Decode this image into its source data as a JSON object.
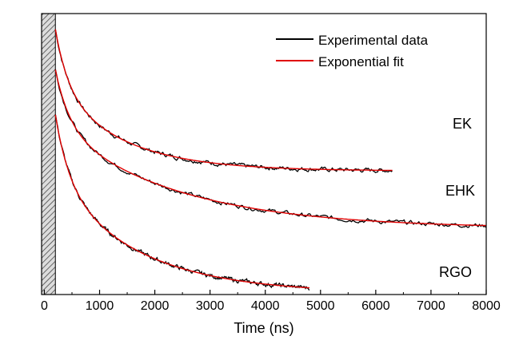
{
  "chart_data": {
    "type": "line",
    "title": "",
    "xlabel": "Time (ns)",
    "ylabel": "",
    "xlim": [
      -50,
      8000
    ],
    "ylim": [
      0,
      1
    ],
    "x_ticks": [
      0,
      1000,
      2000,
      3000,
      4000,
      5000,
      6000,
      7000,
      8000
    ],
    "x_tick_labels": [
      "0",
      "1000",
      "2000",
      "3000",
      "4000",
      "5000",
      "6000",
      "7000",
      "8000"
    ],
    "y_ticks_shown": false,
    "excitation_region": [
      -50,
      200
    ],
    "legend": {
      "position": "top-right",
      "entries": [
        {
          "label": "Experimental data",
          "color": "#000000"
        },
        {
          "label": "Exponential fit",
          "color": "#e00000"
        }
      ]
    },
    "series": [
      {
        "name": "EK",
        "label": "EK",
        "t_start": 200,
        "t_end": 6300,
        "y0": 0.944,
        "y_inf": 0.44,
        "a1": 0.2,
        "tau1": 230,
        "a2": 0.304,
        "tau2": 1200,
        "noise": 0.006
      },
      {
        "name": "EHK",
        "label": "EHK",
        "t_start": 200,
        "t_end": 8000,
        "y0": 0.8,
        "y_inf": 0.235,
        "a1": 0.2,
        "tau1": 260,
        "a2": 0.365,
        "tau2": 2200,
        "noise": 0.006
      },
      {
        "name": "RGO",
        "label": "RGO",
        "t_start": 200,
        "t_end": 4800,
        "y0": 0.64,
        "y_inf": 0.005,
        "a1": 0.23,
        "tau1": 250,
        "a2": 0.405,
        "tau2": 1500,
        "noise": 0.006
      }
    ],
    "colors": {
      "experimental": "#000000",
      "fit": "#e00000"
    }
  }
}
